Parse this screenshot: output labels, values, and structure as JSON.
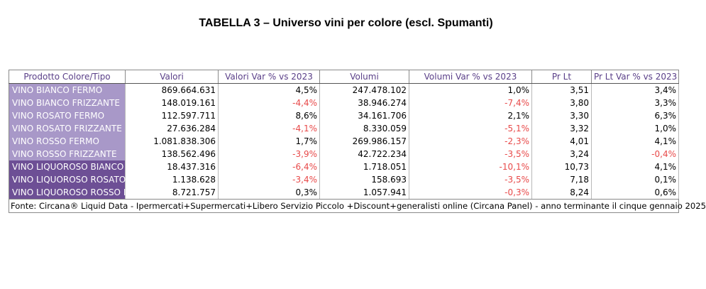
{
  "title": "TABELLA 3 – Universo vini per colore (escl. Spumanti)",
  "table": {
    "headers": [
      "Prodotto Colore/Tipo",
      "Valori",
      "Valori Var % vs 2023",
      "Volumi",
      "Volumi Var % vs 2023",
      "Pr Lt",
      "Pr Lt Var % vs 2023"
    ],
    "rows": [
      [
        "VINO BIANCO FERMO",
        "869.664.631",
        "4,5%",
        "247.478.102",
        "1,0%",
        "3,51",
        "3,4%"
      ],
      [
        "VINO BIANCO FRIZZANTE",
        "148.019.161",
        "-4,4%",
        "38.946.274",
        "-7,4%",
        "3,80",
        "3,3%"
      ],
      [
        "VINO ROSATO FERMO",
        "112.597.711",
        "8,6%",
        "34.161.706",
        "2,1%",
        "3,30",
        "6,3%"
      ],
      [
        "VINO ROSATO FRIZZANTE",
        "27.636.284",
        "-4,1%",
        "8.330.059",
        "-5,1%",
        "3,32",
        "1,0%"
      ],
      [
        "VINO ROSSO FERMO",
        "1.081.838.306",
        "1,7%",
        "269.986.157",
        "-2,3%",
        "4,01",
        "4,1%"
      ],
      [
        "VINO ROSSO FRIZZANTE",
        "138.562.496",
        "-3,9%",
        "42.722.234",
        "-3,5%",
        "3,24",
        "-0,4%"
      ],
      [
        "VINO LIQUOROSO BIANCO",
        "18.437.316",
        "-6,4%",
        "1.718.051",
        "-10,1%",
        "10,73",
        "4,1%"
      ],
      [
        "VINO LIQUOROSO ROSATO",
        "1.138.628",
        "-3,4%",
        "158.693",
        "-3,5%",
        "7,18",
        "0,1%"
      ],
      [
        "VINO LIQUOROSO ROSSO I",
        "8.721.757",
        "0,3%",
        "1.057.941",
        "-0,3%",
        "8,24",
        "0,6%"
      ]
    ],
    "row_shading": [
      "light",
      "light",
      "light",
      "light",
      "light",
      "light",
      "dark",
      "dark",
      "dark"
    ]
  },
  "source": "Fonte: Circana® Liquid Data - Ipermercati+Supermercati+Libero Servizio Piccolo +Discount+generalisti online (Circana Panel) - anno terminante il cinque gennaio 2025",
  "colors": {
    "header_text": "#5a3f88",
    "label_light": "#a898c8",
    "label_dark": "#6d4f95",
    "negative": "#e84a4a"
  }
}
